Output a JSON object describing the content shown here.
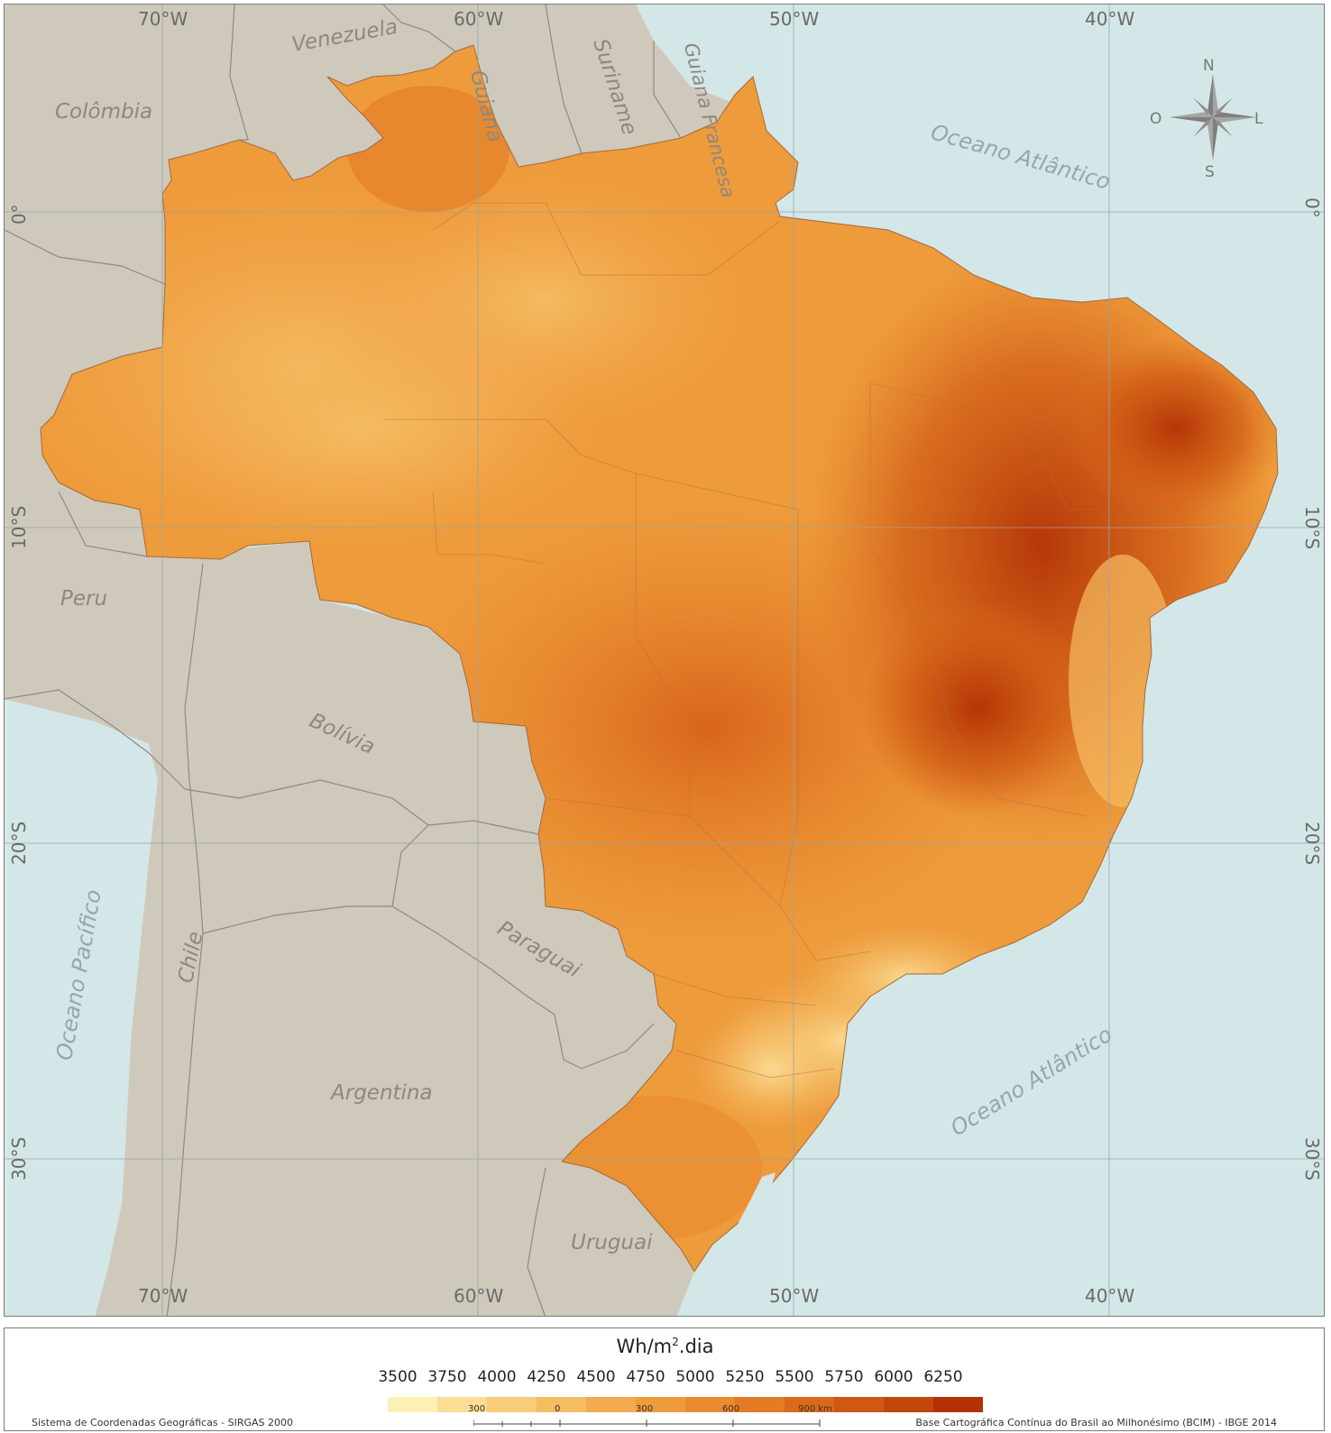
{
  "map": {
    "countries": [
      {
        "name": "Venezuela"
      },
      {
        "name": "Colômbia"
      },
      {
        "name": "Guiana"
      },
      {
        "name": "Suriname"
      },
      {
        "name": "Guiana Francesa"
      },
      {
        "name": "Peru"
      },
      {
        "name": "Bolívia"
      },
      {
        "name": "Chile"
      },
      {
        "name": "Paraguai"
      },
      {
        "name": "Argentina"
      },
      {
        "name": "Uruguai"
      }
    ],
    "oceans": [
      {
        "name": "Oceano Atlântico"
      },
      {
        "name": "Oceano Pacífico"
      },
      {
        "name": "Oceano Atlântico"
      }
    ],
    "longitudes": [
      "70°W",
      "60°W",
      "50°W",
      "40°W"
    ],
    "latitudes": [
      "0°",
      "10°S",
      "20°S",
      "30°S"
    ],
    "compass": {
      "n": "N",
      "s": "S",
      "e": "L",
      "w": "O"
    },
    "colors": {
      "ocean": "#d4e7e8",
      "land": "#cfc9bc",
      "borders": "#8e8a82",
      "graticule": "#9aa3a6"
    }
  },
  "legend": {
    "unit_base": "Wh/m",
    "unit_exp": "2",
    "unit_suffix": ".dia",
    "classes": [
      {
        "value": "3500",
        "color": "#fdf0b4"
      },
      {
        "value": "3750",
        "color": "#fbdd94"
      },
      {
        "value": "4000",
        "color": "#f8cc78"
      },
      {
        "value": "4250",
        "color": "#f5bc62"
      },
      {
        "value": "4500",
        "color": "#f2ab4e"
      },
      {
        "value": "4750",
        "color": "#ee9b3c"
      },
      {
        "value": "5000",
        "color": "#e98b2e"
      },
      {
        "value": "5250",
        "color": "#e27b24"
      },
      {
        "value": "5500",
        "color": "#da6a1b"
      },
      {
        "value": "5750",
        "color": "#cf5913"
      },
      {
        "value": "6000",
        "color": "#c2470b"
      },
      {
        "value": "6250",
        "color": "#b23205"
      }
    ],
    "scale_labels": [
      "300",
      "0",
      "300",
      "600",
      "900 km"
    ],
    "crs_note": "Sistema de Coordenadas Geográficas - SIRGAS 2000",
    "source_note": "Base Cartográfica Contínua do Brasil ao Milhonésimo (BCIM) - IBGE 2014"
  }
}
